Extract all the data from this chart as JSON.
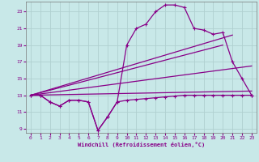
{
  "xlabel": "Windchill (Refroidissement éolien,°C)",
  "bg_color": "#c8e8e8",
  "line_color": "#880088",
  "grid_color": "#aacccc",
  "xlim": [
    -0.5,
    23.5
  ],
  "ylim": [
    8.5,
    24.2
  ],
  "xticks": [
    0,
    1,
    2,
    3,
    4,
    5,
    6,
    7,
    8,
    9,
    10,
    11,
    12,
    13,
    14,
    15,
    16,
    17,
    18,
    19,
    20,
    21,
    22,
    23
  ],
  "yticks": [
    9,
    11,
    13,
    15,
    17,
    19,
    21,
    23
  ],
  "curve1_x": [
    0,
    1,
    2,
    3,
    4,
    5,
    6,
    7,
    8,
    9,
    10,
    11,
    12,
    13,
    14,
    15,
    16,
    17,
    18,
    19,
    20,
    21,
    22,
    23
  ],
  "curve1_y": [
    13.0,
    13.0,
    12.2,
    11.7,
    12.4,
    12.4,
    12.2,
    8.8,
    10.4,
    12.2,
    12.4,
    12.5,
    12.6,
    12.7,
    12.8,
    12.9,
    13.0,
    13.0,
    13.0,
    13.0,
    13.0,
    13.0,
    13.0,
    13.0
  ],
  "curve2_x": [
    0,
    1,
    2,
    3,
    4,
    5,
    6,
    7,
    8,
    9,
    10,
    11,
    12,
    13,
    14,
    15,
    16,
    17,
    18,
    19,
    20,
    21,
    22,
    23
  ],
  "curve2_y": [
    13.0,
    13.0,
    12.2,
    11.7,
    12.4,
    12.4,
    12.2,
    8.8,
    10.4,
    12.2,
    19.0,
    21.0,
    21.5,
    23.0,
    23.8,
    23.8,
    23.5,
    21.0,
    20.8,
    20.3,
    20.5,
    17.0,
    15.0,
    13.0
  ],
  "line1_x": [
    0,
    23
  ],
  "line1_y": [
    13.0,
    13.5
  ],
  "line2_x": [
    0,
    23
  ],
  "line2_y": [
    13.0,
    16.5
  ],
  "line3_x": [
    0,
    21
  ],
  "line3_y": [
    13.0,
    20.2
  ],
  "line4_x": [
    0,
    20
  ],
  "line4_y": [
    13.0,
    19.0
  ]
}
